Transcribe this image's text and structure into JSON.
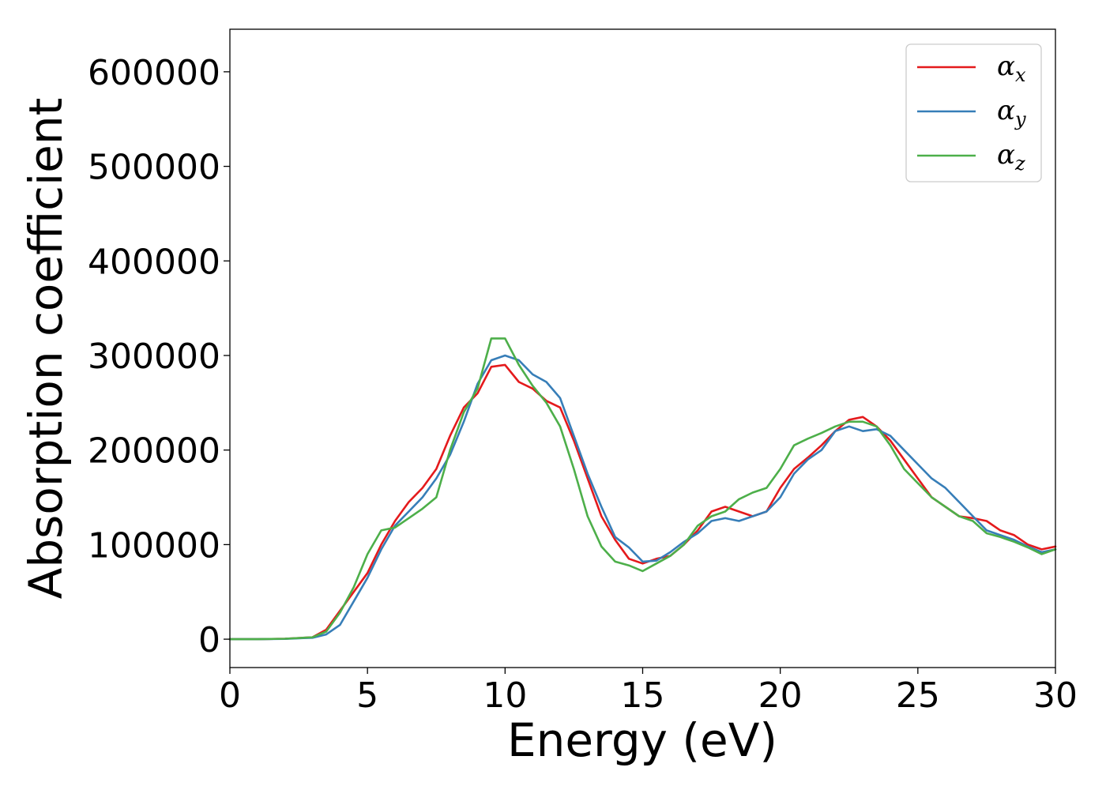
{
  "chart_data": {
    "type": "line",
    "title": "",
    "xlabel": "Energy (eV)",
    "ylabel": "Absorption coefficient",
    "xlim": [
      0,
      30
    ],
    "ylim": [
      -30000,
      645000
    ],
    "xticks": [
      0,
      5,
      10,
      15,
      20,
      25,
      30
    ],
    "yticks": [
      0,
      100000,
      200000,
      300000,
      400000,
      500000,
      600000
    ],
    "xtick_labels": [
      "0",
      "5",
      "10",
      "15",
      "20",
      "25",
      "30"
    ],
    "ytick_labels": [
      "0",
      "100000",
      "200000",
      "300000",
      "400000",
      "500000",
      "600000"
    ],
    "grid": false,
    "legend_position": "top-right",
    "series": [
      {
        "name": "α",
        "subscript": "x",
        "color": "#e41a1c",
        "x": [
          0,
          1,
          2,
          3,
          3.5,
          4,
          4.5,
          5,
          5.5,
          6,
          6.5,
          7,
          7.5,
          8,
          8.5,
          9,
          9.5,
          10,
          10.5,
          11,
          11.5,
          12,
          12.5,
          13,
          13.5,
          14,
          14.5,
          15,
          15.5,
          16,
          16.5,
          17,
          17.5,
          18,
          18.5,
          19,
          19.5,
          20,
          20.5,
          21,
          21.5,
          22,
          22.5,
          23,
          23.5,
          24,
          24.5,
          25,
          25.5,
          26,
          26.5,
          27,
          27.5,
          28,
          28.5,
          29,
          29.5,
          30
        ],
        "y": [
          0,
          0,
          500,
          2000,
          10000,
          30000,
          50000,
          70000,
          100000,
          125000,
          145000,
          160000,
          180000,
          215000,
          245000,
          260000,
          288000,
          290000,
          272000,
          265000,
          252000,
          245000,
          210000,
          170000,
          130000,
          105000,
          85000,
          80000,
          85000,
          88000,
          100000,
          115000,
          135000,
          140000,
          135000,
          130000,
          135000,
          160000,
          180000,
          192000,
          205000,
          220000,
          232000,
          235000,
          225000,
          210000,
          190000,
          170000,
          150000,
          140000,
          130000,
          128000,
          125000,
          115000,
          110000,
          100000,
          95000,
          98000
        ]
      },
      {
        "name": "α",
        "subscript": "y",
        "color": "#377eb8",
        "x": [
          0,
          1,
          2,
          3,
          3.5,
          4,
          4.5,
          5,
          5.5,
          6,
          6.5,
          7,
          7.5,
          8,
          8.5,
          9,
          9.5,
          10,
          10.5,
          11,
          11.5,
          12,
          12.5,
          13,
          13.5,
          14,
          14.5,
          15,
          15.5,
          16,
          16.5,
          17,
          17.5,
          18,
          18.5,
          19,
          19.5,
          20,
          20.5,
          21,
          21.5,
          22,
          22.5,
          23,
          23.5,
          24,
          24.5,
          25,
          25.5,
          26,
          26.5,
          27,
          27.5,
          28,
          28.5,
          29,
          29.5,
          30
        ],
        "y": [
          0,
          0,
          300,
          1500,
          5000,
          15000,
          40000,
          65000,
          95000,
          120000,
          135000,
          150000,
          170000,
          195000,
          230000,
          270000,
          295000,
          300000,
          295000,
          280000,
          272000,
          255000,
          215000,
          175000,
          140000,
          108000,
          97000,
          82000,
          83000,
          92000,
          103000,
          112000,
          125000,
          128000,
          125000,
          130000,
          135000,
          150000,
          175000,
          190000,
          200000,
          220000,
          225000,
          220000,
          222000,
          215000,
          200000,
          185000,
          170000,
          160000,
          145000,
          130000,
          115000,
          110000,
          105000,
          98000,
          92000,
          95000
        ]
      },
      {
        "name": "α",
        "subscript": "z",
        "color": "#4daf4a",
        "x": [
          0,
          1,
          2,
          3,
          3.5,
          4,
          4.5,
          5,
          5.5,
          6,
          6.5,
          7,
          7.5,
          8,
          8.5,
          9,
          9.5,
          10,
          10.5,
          11,
          11.5,
          12,
          12.5,
          13,
          13.5,
          14,
          14.5,
          15,
          15.5,
          16,
          16.5,
          17,
          17.5,
          18,
          18.5,
          19,
          19.5,
          20,
          20.5,
          21,
          21.5,
          22,
          22.5,
          23,
          23.5,
          24,
          24.5,
          25,
          25.5,
          26,
          26.5,
          27,
          27.5,
          28,
          28.5,
          29,
          29.5,
          30
        ],
        "y": [
          0,
          0,
          500,
          2000,
          8000,
          28000,
          55000,
          90000,
          115000,
          118000,
          128000,
          138000,
          150000,
          200000,
          240000,
          265000,
          318000,
          318000,
          290000,
          268000,
          250000,
          225000,
          180000,
          130000,
          98000,
          82000,
          78000,
          72000,
          80000,
          88000,
          100000,
          120000,
          130000,
          135000,
          148000,
          155000,
          160000,
          180000,
          205000,
          212000,
          218000,
          225000,
          230000,
          230000,
          225000,
          205000,
          180000,
          165000,
          150000,
          140000,
          130000,
          125000,
          112000,
          108000,
          103000,
          97000,
          90000,
          95000
        ]
      }
    ]
  }
}
